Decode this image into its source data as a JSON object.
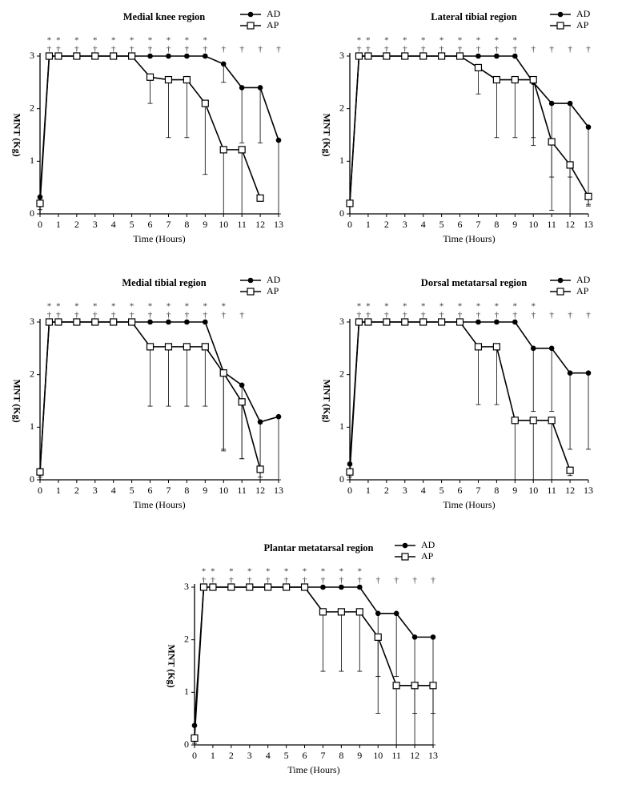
{
  "chart_data": [
    {
      "type": "line",
      "title": "Medial knee region",
      "x_label": "Time (Hours)",
      "y_label": "MNT (Kg)",
      "x": [
        0,
        0.5,
        1,
        2,
        3,
        4,
        5,
        6,
        7,
        8,
        9,
        10,
        11,
        12,
        13
      ],
      "xlim": [
        0,
        13
      ],
      "xticks": [
        0,
        1,
        2,
        3,
        4,
        5,
        6,
        7,
        8,
        9,
        10,
        11,
        12,
        13
      ],
      "ylim": [
        0,
        3
      ],
      "yticks": [
        0,
        1,
        2,
        3
      ],
      "star_marks": [
        null,
        "*",
        "*",
        "*",
        "*",
        "*",
        "*",
        "*",
        "*",
        "*",
        "*",
        null,
        null,
        null,
        null
      ],
      "dagger_marks": [
        null,
        "†",
        "†",
        "†",
        "†",
        "†",
        "†",
        "†",
        "†",
        "†",
        "†",
        "†",
        "†",
        "†",
        "†"
      ],
      "series": [
        {
          "name": "AD",
          "color": "#000000",
          "marker": "circle",
          "values": [
            0.32,
            3,
            3,
            3,
            3,
            3,
            3,
            3,
            3,
            3,
            3,
            2.85,
            2.4,
            2.4,
            1.4
          ],
          "errors": [
            null,
            null,
            null,
            null,
            null,
            null,
            null,
            null,
            null,
            null,
            null,
            0.35,
            1.05,
            1.05,
            1.4
          ]
        },
        {
          "name": "AP",
          "color": "#000000",
          "marker": "square",
          "values": [
            0.2,
            3,
            3,
            3,
            3,
            3,
            3,
            2.6,
            2.55,
            2.55,
            2.1,
            1.22,
            1.22,
            0.3,
            null
          ],
          "errors": [
            0.12,
            null,
            null,
            null,
            null,
            null,
            null,
            0.5,
            1.1,
            1.1,
            1.35,
            1.22,
            1.22,
            0.05,
            null
          ]
        }
      ]
    },
    {
      "type": "line",
      "title": "Lateral tibial region",
      "x_label": "Time (Hours)",
      "y_label": "MNT (Kg)",
      "x": [
        0,
        0.5,
        1,
        2,
        3,
        4,
        5,
        6,
        7,
        8,
        9,
        10,
        11,
        12,
        13
      ],
      "xlim": [
        0,
        13
      ],
      "xticks": [
        0,
        1,
        2,
        3,
        4,
        5,
        6,
        7,
        8,
        9,
        10,
        11,
        12,
        13
      ],
      "ylim": [
        0,
        3
      ],
      "yticks": [
        0,
        1,
        2,
        3
      ],
      "star_marks": [
        null,
        "*",
        "*",
        "*",
        "*",
        "*",
        "*",
        "*",
        "*",
        "*",
        "*",
        null,
        null,
        null,
        null
      ],
      "dagger_marks": [
        null,
        "†",
        "†",
        "†",
        "†",
        "†",
        "†",
        "†",
        "†",
        "†",
        "†",
        "†",
        "†",
        "†",
        "†"
      ],
      "series": [
        {
          "name": "AD",
          "color": "#000000",
          "marker": "circle",
          "values": [
            0.22,
            3,
            3,
            3,
            3,
            3,
            3,
            3,
            3,
            3,
            3,
            2.5,
            2.1,
            2.1,
            1.65
          ],
          "errors": [
            null,
            null,
            null,
            null,
            null,
            null,
            null,
            null,
            null,
            null,
            null,
            1.2,
            1.4,
            1.4,
            1.5
          ]
        },
        {
          "name": "AP",
          "color": "#000000",
          "marker": "square",
          "values": [
            0.2,
            3,
            3,
            3,
            3,
            3,
            3,
            3,
            2.78,
            2.55,
            2.55,
            2.55,
            1.37,
            0.93,
            0.33
          ],
          "errors": [
            null,
            null,
            null,
            null,
            null,
            null,
            null,
            null,
            0.5,
            1.1,
            1.1,
            1.1,
            1.3,
            0.93,
            0.15
          ]
        }
      ]
    },
    {
      "type": "line",
      "title": "Medial tibial region",
      "x_label": "Time (Hours)",
      "y_label": "MNT (Kg)",
      "x": [
        0,
        0.5,
        1,
        2,
        3,
        4,
        5,
        6,
        7,
        8,
        9,
        10,
        11,
        12,
        13
      ],
      "xlim": [
        0,
        13
      ],
      "xticks": [
        0,
        1,
        2,
        3,
        4,
        5,
        6,
        7,
        8,
        9,
        10,
        11,
        12,
        13
      ],
      "ylim": [
        0,
        3
      ],
      "yticks": [
        0,
        1,
        2,
        3
      ],
      "star_marks": [
        null,
        "*",
        "*",
        "*",
        "*",
        "*",
        "*",
        "*",
        "*",
        "*",
        "*",
        "*",
        null,
        null,
        null
      ],
      "dagger_marks": [
        null,
        "†",
        "†",
        "†",
        "†",
        "†",
        "†",
        "†",
        "†",
        "†",
        "†",
        "†",
        "†",
        null,
        null
      ],
      "series": [
        {
          "name": "AD",
          "color": "#000000",
          "marker": "circle",
          "values": [
            0.18,
            3,
            3,
            3,
            3,
            3,
            3,
            3,
            3,
            3,
            3,
            2.05,
            1.8,
            1.1,
            1.2
          ],
          "errors": [
            null,
            null,
            null,
            null,
            null,
            null,
            null,
            null,
            null,
            null,
            null,
            1.5,
            1.4,
            1.1,
            1.2
          ]
        },
        {
          "name": "AP",
          "color": "#000000",
          "marker": "square",
          "values": [
            0.15,
            3,
            3,
            3,
            3,
            3,
            3,
            2.53,
            2.53,
            2.53,
            2.53,
            2.03,
            1.48,
            0.2,
            null
          ],
          "errors": [
            0.1,
            null,
            null,
            null,
            null,
            null,
            null,
            1.13,
            1.13,
            1.13,
            1.13,
            1.45,
            1.08,
            0.15,
            null
          ]
        }
      ]
    },
    {
      "type": "line",
      "title": "Dorsal metatarsal region",
      "x_label": "Time (Hours)",
      "y_label": "MNT (Kg)",
      "x": [
        0,
        0.5,
        1,
        2,
        3,
        4,
        5,
        6,
        7,
        8,
        9,
        10,
        11,
        12,
        13
      ],
      "xlim": [
        0,
        13
      ],
      "xticks": [
        0,
        1,
        2,
        3,
        4,
        5,
        6,
        7,
        8,
        9,
        10,
        11,
        12,
        13
      ],
      "ylim": [
        0,
        3
      ],
      "yticks": [
        0,
        1,
        2,
        3
      ],
      "star_marks": [
        null,
        "*",
        "*",
        "*",
        "*",
        "*",
        "*",
        "*",
        "*",
        "*",
        "*",
        "*",
        null,
        null,
        null
      ],
      "dagger_marks": [
        null,
        "†",
        "†",
        "†",
        "†",
        "†",
        "†",
        "†",
        "†",
        "†",
        "†",
        "†",
        "†",
        "†",
        "†"
      ],
      "series": [
        {
          "name": "AD",
          "color": "#000000",
          "marker": "circle",
          "values": [
            0.3,
            3,
            3,
            3,
            3,
            3,
            3,
            3,
            3,
            3,
            3,
            2.5,
            2.5,
            2.03,
            2.03
          ],
          "errors": [
            null,
            null,
            null,
            null,
            null,
            null,
            null,
            null,
            null,
            null,
            null,
            1.2,
            1.2,
            1.45,
            1.45
          ]
        },
        {
          "name": "AP",
          "color": "#000000",
          "marker": "square",
          "values": [
            0.15,
            3,
            3,
            3,
            3,
            3,
            3,
            3,
            2.53,
            2.53,
            1.13,
            1.13,
            1.13,
            0.18,
            null
          ],
          "errors": [
            0.1,
            null,
            null,
            null,
            null,
            null,
            null,
            null,
            1.1,
            1.1,
            1.13,
            1.13,
            1.13,
            0.1,
            null
          ]
        }
      ]
    },
    {
      "type": "line",
      "title": "Plantar metatarsal region",
      "x_label": "Time (Hours)",
      "y_label": "MNT (Kg)",
      "x": [
        0,
        0.5,
        1,
        2,
        3,
        4,
        5,
        6,
        7,
        8,
        9,
        10,
        11,
        12,
        13
      ],
      "xlim": [
        0,
        13
      ],
      "xticks": [
        0,
        1,
        2,
        3,
        4,
        5,
        6,
        7,
        8,
        9,
        10,
        11,
        12,
        13
      ],
      "ylim": [
        0,
        3
      ],
      "yticks": [
        0,
        1,
        2,
        3
      ],
      "star_marks": [
        null,
        "*",
        "*",
        "*",
        "*",
        "*",
        "*",
        "*",
        "*",
        "*",
        "*",
        null,
        null,
        null,
        null
      ],
      "dagger_marks": [
        null,
        "†",
        "†",
        "†",
        "†",
        "†",
        "†",
        "†",
        "†",
        "†",
        "†",
        "†",
        "†",
        "†",
        "†"
      ],
      "series": [
        {
          "name": "AD",
          "color": "#000000",
          "marker": "circle",
          "values": [
            0.37,
            3,
            3,
            3,
            3,
            3,
            3,
            3,
            3,
            3,
            3,
            2.5,
            2.5,
            2.05,
            2.05
          ],
          "errors": [
            null,
            null,
            null,
            null,
            null,
            null,
            null,
            null,
            null,
            null,
            null,
            1.2,
            1.2,
            1.45,
            1.45
          ]
        },
        {
          "name": "AP",
          "color": "#000000",
          "marker": "square",
          "values": [
            0.13,
            3,
            3,
            3,
            3,
            3,
            3,
            3,
            2.53,
            2.53,
            2.53,
            2.05,
            1.13,
            1.13,
            1.13
          ],
          "errors": [
            0.1,
            null,
            null,
            null,
            null,
            null,
            null,
            null,
            1.13,
            1.13,
            1.13,
            1.45,
            1.13,
            1.13,
            1.13
          ]
        }
      ]
    }
  ]
}
